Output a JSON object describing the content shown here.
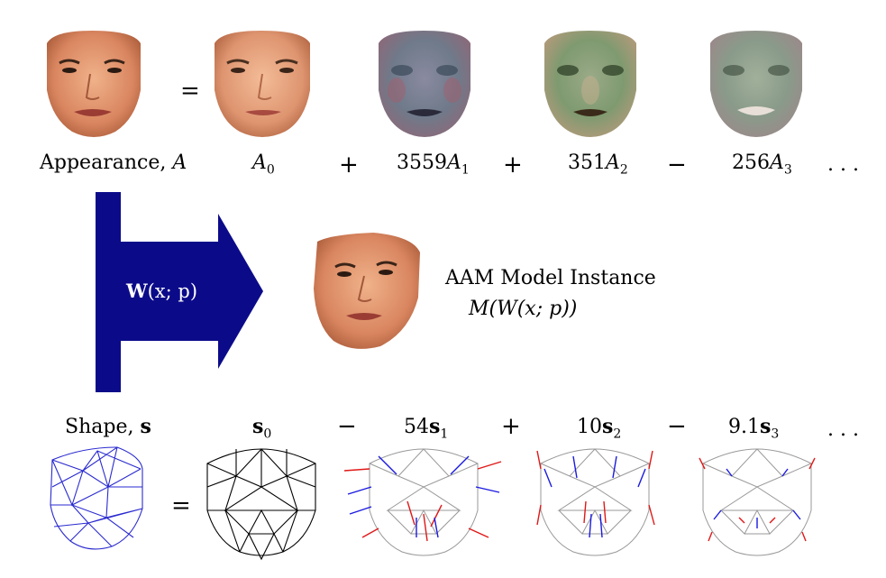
{
  "appearance_row": {
    "lhs_label": "Appearance, ",
    "lhs_symbol": "A",
    "equals": "=",
    "terms": [
      {
        "label": "A",
        "sub": "0"
      },
      {
        "op": "+",
        "coef": "3559",
        "label": "A",
        "sub": "1"
      },
      {
        "op": "+",
        "coef": "351",
        "label": "A",
        "sub": "2"
      },
      {
        "op": "−",
        "coef": "256",
        "label": "A",
        "sub": "3"
      }
    ],
    "ellipsis": ". . ."
  },
  "warp": {
    "label_bold": "W",
    "label_rest": "(x; p)",
    "arrow_color": "#0b0b8a"
  },
  "instance": {
    "title": "AAM Model Instance",
    "formula": "M(W(x; p))"
  },
  "shape_row": {
    "lhs_label": "Shape, ",
    "lhs_symbol": "s",
    "equals": "=",
    "terms": [
      {
        "label": "s",
        "sub": "0"
      },
      {
        "op": "−",
        "coef": "54",
        "label": "s",
        "sub": "1"
      },
      {
        "op": "+",
        "coef": "10",
        "label": "s",
        "sub": "2"
      },
      {
        "op": "−",
        "coef": "9.1",
        "label": "s",
        "sub": "3"
      }
    ],
    "ellipsis": ". . .",
    "mesh_color": "#2a2ad0",
    "arrow_red": "#e01818",
    "arrow_blue": "#1a1ae0"
  }
}
